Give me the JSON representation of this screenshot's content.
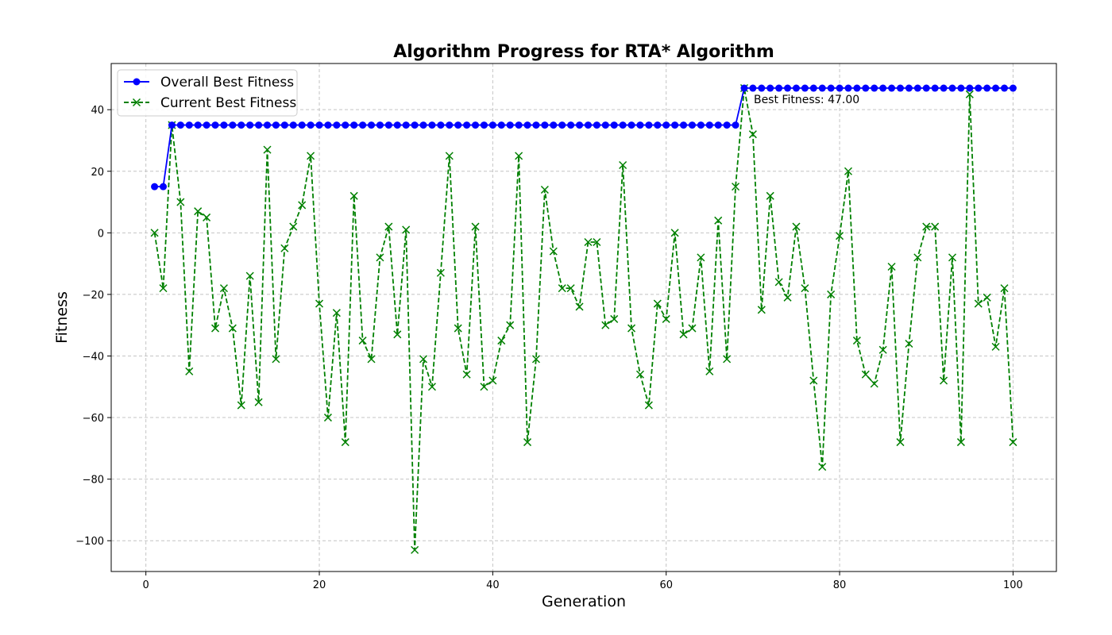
{
  "chart_data": {
    "type": "line",
    "title": "Algorithm Progress for RTA* Algorithm",
    "xlabel": "Generation",
    "ylabel": "Fitness",
    "xlim": [
      -4,
      105
    ],
    "ylim": [
      -110,
      55
    ],
    "xticks": [
      0,
      20,
      40,
      60,
      80,
      100
    ],
    "yticks": [
      40,
      20,
      0,
      -20,
      -40,
      -60,
      -80,
      -100
    ],
    "xtick_labels": [
      "0",
      "20",
      "40",
      "60",
      "80",
      "100"
    ],
    "ytick_labels": [
      "40",
      "20",
      "0",
      "−20",
      "−40",
      "−60",
      "−80",
      "−100"
    ],
    "grid": true,
    "legend_position": "top-left",
    "x": [
      1,
      2,
      3,
      4,
      5,
      6,
      7,
      8,
      9,
      10,
      11,
      12,
      13,
      14,
      15,
      16,
      17,
      18,
      19,
      20,
      21,
      22,
      23,
      24,
      25,
      26,
      27,
      28,
      29,
      30,
      31,
      32,
      33,
      34,
      35,
      36,
      37,
      38,
      39,
      40,
      41,
      42,
      43,
      44,
      45,
      46,
      47,
      48,
      49,
      50,
      51,
      52,
      53,
      54,
      55,
      56,
      57,
      58,
      59,
      60,
      61,
      62,
      63,
      64,
      65,
      66,
      67,
      68,
      69,
      70,
      71,
      72,
      73,
      74,
      75,
      76,
      77,
      78,
      79,
      80,
      81,
      82,
      83,
      84,
      85,
      86,
      87,
      88,
      89,
      90,
      91,
      92,
      93,
      94,
      95,
      96,
      97,
      98,
      99,
      100
    ],
    "series": [
      {
        "name": "Overall Best Fitness",
        "color": "#0000ff",
        "style": "solid",
        "marker": "circle",
        "values": [
          15,
          15,
          35,
          35,
          35,
          35,
          35,
          35,
          35,
          35,
          35,
          35,
          35,
          35,
          35,
          35,
          35,
          35,
          35,
          35,
          35,
          35,
          35,
          35,
          35,
          35,
          35,
          35,
          35,
          35,
          35,
          35,
          35,
          35,
          35,
          35,
          35,
          35,
          35,
          35,
          35,
          35,
          35,
          35,
          35,
          35,
          35,
          35,
          35,
          35,
          35,
          35,
          35,
          35,
          35,
          35,
          35,
          35,
          35,
          35,
          35,
          35,
          35,
          35,
          35,
          35,
          35,
          35,
          47,
          47,
          47,
          47,
          47,
          47,
          47,
          47,
          47,
          47,
          47,
          47,
          47,
          47,
          47,
          47,
          47,
          47,
          47,
          47,
          47,
          47,
          47,
          47,
          47,
          47,
          47,
          47,
          47,
          47,
          47,
          47
        ]
      },
      {
        "name": "Current Best Fitness",
        "color": "#008000",
        "style": "dashed",
        "marker": "x",
        "values": [
          0,
          -18,
          35,
          10,
          -45,
          7,
          5,
          -31,
          -18,
          -31,
          -56,
          -14,
          -55,
          27,
          -41,
          -5,
          2,
          9,
          25,
          -23,
          -60,
          -26,
          -68,
          12,
          -35,
          -41,
          -8,
          2,
          -33,
          1,
          -103,
          -41,
          -50,
          -13,
          25,
          -31,
          -46,
          2,
          -50,
          -48,
          -35,
          -30,
          25,
          -68,
          -41,
          14,
          -6,
          -18,
          -18,
          -24,
          -3,
          -3,
          -30,
          -28,
          22,
          -31,
          -46,
          -56,
          -23,
          -28,
          0,
          -33,
          -31,
          -8,
          -45,
          4,
          -41,
          15,
          47,
          32,
          -25,
          12,
          -16,
          -21,
          2,
          -18,
          -48,
          -76,
          -20,
          -1,
          20,
          -35,
          -46,
          -49,
          -38,
          -11,
          -68,
          -36,
          -8,
          2,
          2,
          -48,
          -8,
          -68,
          45,
          -23,
          -21,
          -37,
          -18,
          -68
        ]
      }
    ],
    "annotations": [
      {
        "text": "Best Fitness: 47.00",
        "x": 69,
        "y": 47
      }
    ]
  }
}
